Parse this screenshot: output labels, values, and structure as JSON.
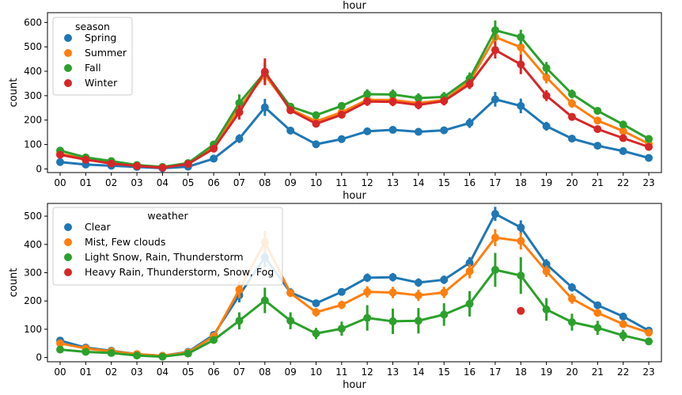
{
  "chart_data": [
    {
      "type": "line",
      "title": "hour",
      "xlabel": "",
      "ylabel": "count",
      "ylim": [
        -15,
        640
      ],
      "yticks": [
        0,
        100,
        200,
        300,
        400,
        500,
        600
      ],
      "categories": [
        "00",
        "01",
        "02",
        "03",
        "04",
        "05",
        "06",
        "07",
        "08",
        "09",
        "10",
        "11",
        "12",
        "13",
        "14",
        "15",
        "16",
        "17",
        "18",
        "19",
        "20",
        "21",
        "22",
        "23"
      ],
      "legend": {
        "title": "season",
        "placement": "upper-left"
      },
      "series": [
        {
          "name": "Spring",
          "color": "#1f77b4",
          "values": [
            28,
            18,
            13,
            8,
            3,
            9,
            42,
            124,
            252,
            157,
            101,
            122,
            154,
            160,
            152,
            158,
            188,
            285,
            258,
            175,
            124,
            95,
            73,
            45
          ],
          "errors": [
            0,
            0,
            0,
            0,
            0,
            0,
            0,
            18,
            35,
            15,
            0,
            0,
            0,
            15,
            15,
            15,
            20,
            30,
            30,
            18,
            0,
            0,
            0,
            0
          ]
        },
        {
          "name": "Summer",
          "color": "#ff7f0e",
          "values": [
            62,
            40,
            28,
            14,
            6,
            21,
            92,
            250,
            385,
            245,
            195,
            232,
            283,
            282,
            270,
            282,
            358,
            540,
            498,
            375,
            268,
            198,
            155,
            103
          ],
          "errors": [
            0,
            0,
            0,
            0,
            0,
            0,
            0,
            30,
            40,
            0,
            15,
            15,
            20,
            20,
            20,
            20,
            25,
            30,
            30,
            25,
            18,
            0,
            0,
            0
          ]
        },
        {
          "name": "Fall",
          "color": "#2ca02c",
          "values": [
            75,
            47,
            32,
            16,
            8,
            24,
            100,
            270,
            395,
            255,
            220,
            258,
            306,
            305,
            290,
            295,
            370,
            568,
            540,
            413,
            307,
            238,
            182,
            123
          ],
          "errors": [
            0,
            0,
            0,
            0,
            0,
            0,
            0,
            35,
            40,
            0,
            15,
            15,
            20,
            20,
            20,
            20,
            25,
            40,
            30,
            25,
            18,
            0,
            0,
            0
          ]
        },
        {
          "name": "Winter",
          "color": "#d62728",
          "values": [
            58,
            38,
            22,
            12,
            5,
            20,
            83,
            232,
            398,
            240,
            185,
            222,
            276,
            275,
            262,
            278,
            347,
            487,
            428,
            300,
            213,
            163,
            126,
            90
          ],
          "errors": [
            0,
            0,
            0,
            0,
            0,
            0,
            0,
            30,
            55,
            15,
            12,
            12,
            18,
            18,
            18,
            18,
            20,
            35,
            40,
            22,
            15,
            0,
            0,
            0
          ]
        }
      ]
    },
    {
      "type": "line",
      "title": "",
      "xlabel": "hour",
      "ylabel": "count",
      "ylim": [
        -15,
        545
      ],
      "yticks": [
        0,
        100,
        200,
        300,
        400,
        500
      ],
      "categories": [
        "00",
        "01",
        "02",
        "03",
        "04",
        "05",
        "06",
        "07",
        "08",
        "09",
        "10",
        "11",
        "12",
        "13",
        "14",
        "15",
        "16",
        "17",
        "18",
        "19",
        "20",
        "21",
        "22",
        "23"
      ],
      "legend": {
        "title": "weather",
        "placement": "upper-left"
      },
      "series": [
        {
          "name": "Clear",
          "color": "#1f77b4",
          "values": [
            60,
            35,
            24,
            12,
            6,
            20,
            80,
            220,
            355,
            230,
            192,
            232,
            282,
            284,
            265,
            275,
            335,
            508,
            460,
            330,
            248,
            185,
            145,
            95
          ],
          "errors": [
            0,
            0,
            0,
            0,
            0,
            0,
            0,
            25,
            35,
            15,
            12,
            12,
            15,
            15,
            15,
            15,
            20,
            25,
            25,
            18,
            15,
            0,
            0,
            0
          ]
        },
        {
          "name": "Mist, Few clouds",
          "color": "#ff7f0e",
          "values": [
            50,
            32,
            22,
            12,
            6,
            18,
            75,
            240,
            408,
            228,
            160,
            186,
            232,
            230,
            220,
            230,
            305,
            424,
            412,
            305,
            208,
            158,
            118,
            88
          ],
          "errors": [
            0,
            0,
            0,
            0,
            0,
            0,
            0,
            30,
            40,
            0,
            15,
            15,
            20,
            20,
            20,
            20,
            25,
            30,
            30,
            20,
            18,
            0,
            0,
            0
          ]
        },
        {
          "name": "Light Snow, Rain, Thunderstorm",
          "color": "#2ca02c",
          "values": [
            28,
            20,
            16,
            7,
            3,
            14,
            62,
            130,
            202,
            130,
            85,
            102,
            140,
            128,
            130,
            152,
            190,
            310,
            290,
            170,
            125,
            105,
            78,
            57
          ],
          "errors": [
            0,
            0,
            0,
            0,
            0,
            0,
            0,
            30,
            45,
            30,
            20,
            25,
            45,
            45,
            45,
            40,
            45,
            60,
            65,
            40,
            30,
            25,
            20,
            0
          ]
        },
        {
          "name": "Heavy Rain, Thunderstorm, Snow, Fog",
          "color": "#d62728",
          "points": [
            {
              "x": "18",
              "y": 165
            }
          ],
          "errors": [
            0
          ]
        }
      ]
    }
  ]
}
